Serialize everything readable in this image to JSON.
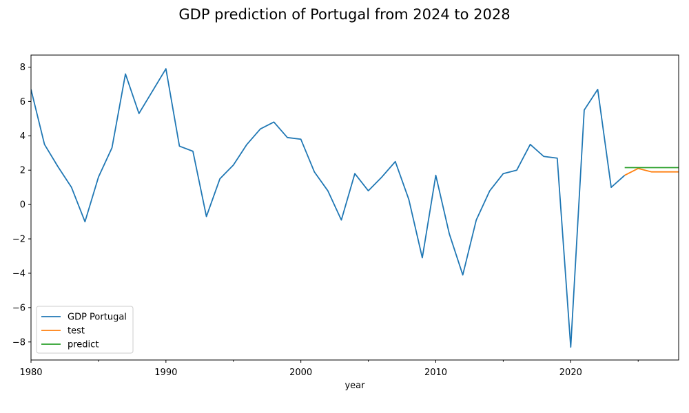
{
  "chart_data": {
    "type": "line",
    "title": "GDP prediction of Portugal from 2024 to 2028",
    "xlabel": "year",
    "ylabel": "",
    "xlim": [
      1980,
      2028
    ],
    "ylim": [
      -9.05,
      8.7
    ],
    "x_ticks": [
      1980,
      1990,
      2000,
      2010,
      2020
    ],
    "x_ticks_minor": [
      1985,
      1995,
      2005,
      2015,
      2025
    ],
    "y_ticks": [
      -8,
      -6,
      -4,
      -2,
      0,
      2,
      4,
      6,
      8
    ],
    "grid": false,
    "legend_position": "lower-left",
    "series": [
      {
        "name": "GDP Portugal",
        "color": "#1f77b4",
        "x": [
          1980,
          1981,
          1982,
          1983,
          1984,
          1985,
          1986,
          1987,
          1988,
          1989,
          1990,
          1991,
          1992,
          1993,
          1994,
          1995,
          1996,
          1997,
          1998,
          1999,
          2000,
          2001,
          2002,
          2003,
          2004,
          2005,
          2006,
          2007,
          2008,
          2009,
          2010,
          2011,
          2012,
          2013,
          2014,
          2015,
          2016,
          2017,
          2018,
          2019,
          2020,
          2021,
          2022,
          2023,
          2024
        ],
        "values": [
          6.7,
          3.5,
          2.2,
          1.0,
          -1.0,
          1.6,
          3.3,
          7.6,
          5.3,
          6.6,
          7.9,
          3.4,
          3.1,
          -0.7,
          1.5,
          2.3,
          3.5,
          4.4,
          4.8,
          3.9,
          3.8,
          1.9,
          0.8,
          -0.9,
          1.8,
          0.8,
          1.6,
          2.5,
          0.3,
          -3.1,
          1.7,
          -1.7,
          -4.1,
          -0.9,
          0.8,
          1.8,
          2.0,
          3.5,
          2.8,
          2.7,
          -8.3,
          5.5,
          6.7,
          1.0,
          1.7
        ]
      },
      {
        "name": "test",
        "color": "#ff7f0e",
        "x": [
          2024,
          2025,
          2026,
          2027,
          2028
        ],
        "values": [
          1.7,
          2.1,
          1.9,
          1.9,
          1.9
        ]
      },
      {
        "name": "predict",
        "color": "#2ca02c",
        "x": [
          2024,
          2025,
          2026,
          2027,
          2028
        ],
        "values": [
          2.15,
          2.15,
          2.15,
          2.15,
          2.15
        ]
      }
    ]
  }
}
